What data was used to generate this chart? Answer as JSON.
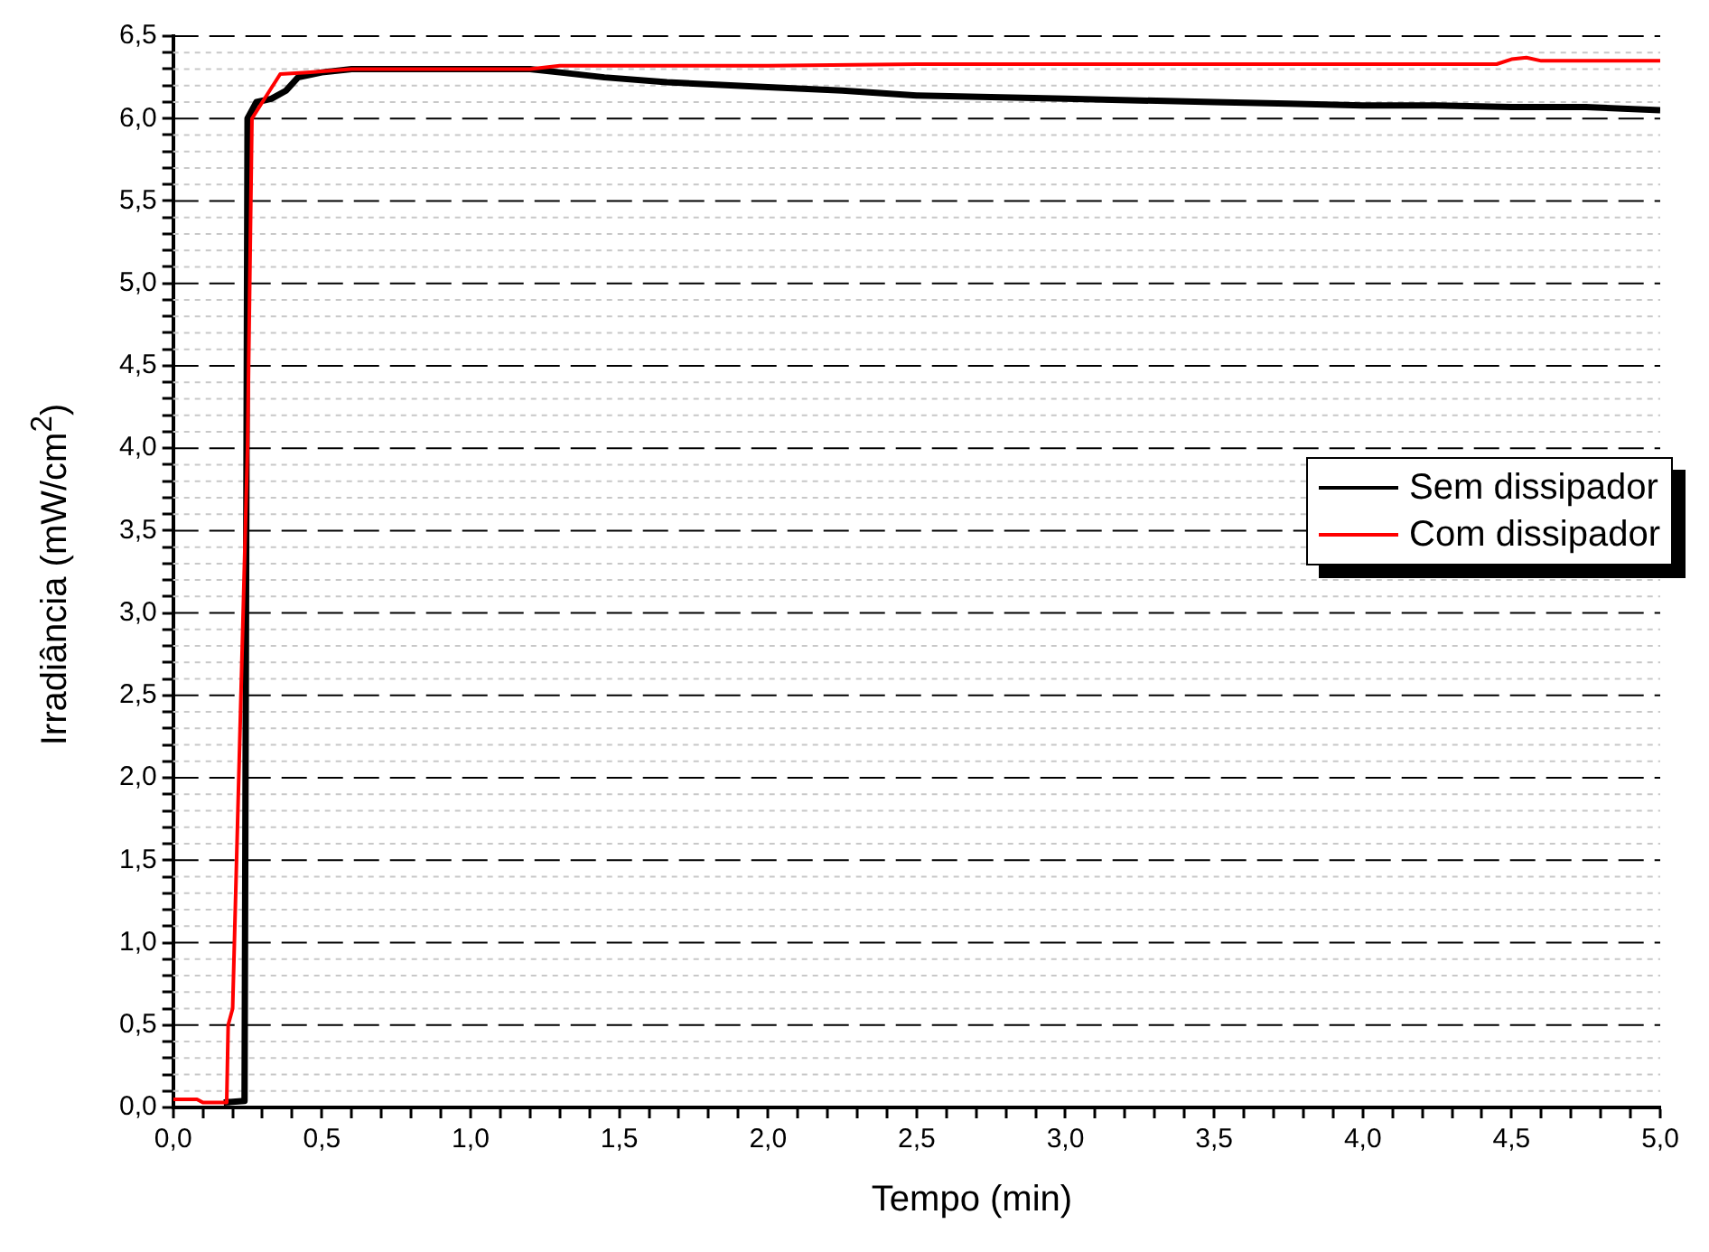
{
  "chart_data": {
    "type": "line",
    "xlabel": "Tempo (min)",
    "ylabel": "Irradiância (mW/cm$^{2}$)",
    "xlim": [
      0,
      5
    ],
    "ylim": [
      0,
      6.5
    ],
    "xticks": [
      {
        "value": 0,
        "label": "0,0"
      },
      {
        "value": 0.1,
        "label": null
      },
      {
        "value": 0.2,
        "label": null
      },
      {
        "value": 0.3,
        "label": null
      },
      {
        "value": 0.4,
        "label": null
      },
      {
        "value": 0.5,
        "label": "0,5"
      },
      {
        "value": 0.6,
        "label": null
      },
      {
        "value": 0.7,
        "label": null
      },
      {
        "value": 0.8,
        "label": null
      },
      {
        "value": 0.9,
        "label": null
      },
      {
        "value": 1,
        "label": "1,0"
      },
      {
        "value": 1.1,
        "label": null
      },
      {
        "value": 1.2,
        "label": null
      },
      {
        "value": 1.3,
        "label": null
      },
      {
        "value": 1.4,
        "label": null
      },
      {
        "value": 1.5,
        "label": "1,5"
      },
      {
        "value": 1.6,
        "label": null
      },
      {
        "value": 1.7,
        "label": null
      },
      {
        "value": 1.8,
        "label": null
      },
      {
        "value": 1.9,
        "label": null
      },
      {
        "value": 2,
        "label": "2,0"
      },
      {
        "value": 2.1,
        "label": null
      },
      {
        "value": 2.2,
        "label": null
      },
      {
        "value": 2.3,
        "label": null
      },
      {
        "value": 2.4,
        "label": null
      },
      {
        "value": 2.5,
        "label": "2,5"
      },
      {
        "value": 2.6,
        "label": null
      },
      {
        "value": 2.7,
        "label": null
      },
      {
        "value": 2.8,
        "label": null
      },
      {
        "value": 2.9,
        "label": null
      },
      {
        "value": 3,
        "label": "3,0"
      },
      {
        "value": 3.1,
        "label": null
      },
      {
        "value": 3.2,
        "label": null
      },
      {
        "value": 3.3,
        "label": null
      },
      {
        "value": 3.4,
        "label": null
      },
      {
        "value": 3.5,
        "label": "3,5"
      },
      {
        "value": 3.6,
        "label": null
      },
      {
        "value": 3.7,
        "label": null
      },
      {
        "value": 3.8,
        "label": null
      },
      {
        "value": 3.9,
        "label": null
      },
      {
        "value": 4,
        "label": "4,0"
      },
      {
        "value": 4.1,
        "label": null
      },
      {
        "value": 4.2,
        "label": null
      },
      {
        "value": 4.3,
        "label": null
      },
      {
        "value": 4.4,
        "label": null
      },
      {
        "value": 4.5,
        "label": "4,5"
      },
      {
        "value": 4.6,
        "label": null
      },
      {
        "value": 4.7,
        "label": null
      },
      {
        "value": 4.8,
        "label": null
      },
      {
        "value": 4.9,
        "label": null
      },
      {
        "value": 5,
        "label": "5,0"
      }
    ],
    "yticks": [
      {
        "value": 0,
        "label": "0,0"
      },
      {
        "value": 0.1,
        "label": null
      },
      {
        "value": 0.2,
        "label": null
      },
      {
        "value": 0.3,
        "label": null
      },
      {
        "value": 0.4,
        "label": null
      },
      {
        "value": 0.5,
        "label": "0,5"
      },
      {
        "value": 0.6,
        "label": null
      },
      {
        "value": 0.7,
        "label": null
      },
      {
        "value": 0.8,
        "label": null
      },
      {
        "value": 0.9,
        "label": null
      },
      {
        "value": 1,
        "label": "1,0"
      },
      {
        "value": 1.1,
        "label": null
      },
      {
        "value": 1.2,
        "label": null
      },
      {
        "value": 1.3,
        "label": null
      },
      {
        "value": 1.4,
        "label": null
      },
      {
        "value": 1.5,
        "label": "1,5"
      },
      {
        "value": 1.6,
        "label": null
      },
      {
        "value": 1.7,
        "label": null
      },
      {
        "value": 1.8,
        "label": null
      },
      {
        "value": 1.9,
        "label": null
      },
      {
        "value": 2,
        "label": "2,0"
      },
      {
        "value": 2.1,
        "label": null
      },
      {
        "value": 2.2,
        "label": null
      },
      {
        "value": 2.3,
        "label": null
      },
      {
        "value": 2.4,
        "label": null
      },
      {
        "value": 2.5,
        "label": "2,5"
      },
      {
        "value": 2.6,
        "label": null
      },
      {
        "value": 2.7,
        "label": null
      },
      {
        "value": 2.8,
        "label": null
      },
      {
        "value": 2.9,
        "label": null
      },
      {
        "value": 3,
        "label": "3,0"
      },
      {
        "value": 3.1,
        "label": null
      },
      {
        "value": 3.2,
        "label": null
      },
      {
        "value": 3.3,
        "label": null
      },
      {
        "value": 3.4,
        "label": null
      },
      {
        "value": 3.5,
        "label": "3,5"
      },
      {
        "value": 3.6,
        "label": null
      },
      {
        "value": 3.7,
        "label": null
      },
      {
        "value": 3.8,
        "label": null
      },
      {
        "value": 3.9,
        "label": null
      },
      {
        "value": 4,
        "label": "4,0"
      },
      {
        "value": 4.1,
        "label": null
      },
      {
        "value": 4.2,
        "label": null
      },
      {
        "value": 4.3,
        "label": null
      },
      {
        "value": 4.4,
        "label": null
      },
      {
        "value": 4.5,
        "label": "4,5"
      },
      {
        "value": 4.6,
        "label": null
      },
      {
        "value": 4.7,
        "label": null
      },
      {
        "value": 4.8,
        "label": null
      },
      {
        "value": 4.9,
        "label": null
      },
      {
        "value": 5,
        "label": "5,0"
      },
      {
        "value": 5.1,
        "label": null
      },
      {
        "value": 5.2,
        "label": null
      },
      {
        "value": 5.3,
        "label": null
      },
      {
        "value": 5.4,
        "label": null
      },
      {
        "value": 5.5,
        "label": "5,5"
      },
      {
        "value": 5.6,
        "label": null
      },
      {
        "value": 5.7,
        "label": null
      },
      {
        "value": 5.8,
        "label": null
      },
      {
        "value": 5.9,
        "label": null
      },
      {
        "value": 6,
        "label": "6,0"
      },
      {
        "value": 6.1,
        "label": null
      },
      {
        "value": 6.2,
        "label": null
      },
      {
        "value": 6.3,
        "label": null
      },
      {
        "value": 6.4,
        "label": null
      },
      {
        "value": 6.5,
        "label": "6,5"
      }
    ],
    "grid": "y",
    "legend": "right",
    "line_style": "solid",
    "marker": "none",
    "series": [
      {
        "name": "Sem dissipador",
        "color": "#000000",
        "x": [
          0.17,
          0.24,
          0.245,
          0.25,
          0.28,
          0.33,
          0.38,
          0.42,
          0.5,
          0.6,
          0.8,
          1.0,
          1.2,
          1.3,
          1.45,
          1.66,
          2.0,
          2.25,
          2.5,
          2.75,
          3.0,
          3.25,
          3.5,
          3.75,
          4.0,
          4.25,
          4.5,
          4.75,
          5.0
        ],
        "values": [
          0.03,
          0.04,
          3.0,
          6.0,
          6.1,
          6.12,
          6.17,
          6.25,
          6.28,
          6.3,
          6.3,
          6.3,
          6.3,
          6.28,
          6.25,
          6.22,
          6.19,
          6.17,
          6.14,
          6.13,
          6.12,
          6.11,
          6.1,
          6.09,
          6.08,
          6.08,
          6.07,
          6.07,
          6.05
        ]
      },
      {
        "name": "Com dissipador",
        "color": "#ff0000",
        "x": [
          0,
          0.08,
          0.1,
          0.18,
          0.185,
          0.2,
          0.25,
          0.265,
          0.3,
          0.36,
          0.45,
          0.6,
          0.8,
          1.0,
          1.2,
          1.3,
          1.5,
          2.0,
          2.5,
          3.0,
          3.5,
          4.0,
          4.45,
          4.5,
          4.55,
          4.6,
          5.0
        ],
        "values": [
          0.05,
          0.05,
          0.03,
          0.03,
          0.5,
          0.6,
          4.0,
          6.0,
          6.1,
          6.27,
          6.28,
          6.3,
          6.3,
          6.3,
          6.3,
          6.32,
          6.32,
          6.32,
          6.33,
          6.33,
          6.33,
          6.33,
          6.33,
          6.36,
          6.37,
          6.35,
          6.35
        ]
      }
    ]
  }
}
